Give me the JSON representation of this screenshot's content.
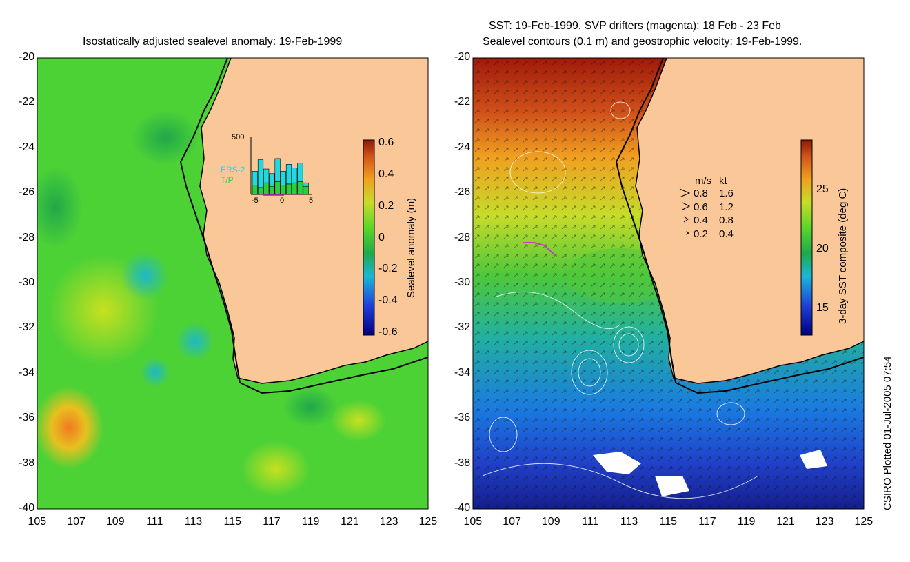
{
  "left_panel": {
    "title": "Isostatically adjusted sealevel anomaly: 19-Feb-1999",
    "lat_labels": [
      "-20",
      "-22",
      "-24",
      "-26",
      "-28",
      "-30",
      "-32",
      "-34",
      "-36",
      "-38",
      "-40"
    ],
    "lon_labels": [
      "105",
      "107",
      "109",
      "111",
      "113",
      "115",
      "117",
      "119",
      "121",
      "123",
      "125"
    ],
    "colorbar": {
      "label": "Sealevel anomaly (m)",
      "ticks": [
        "0.6",
        "0.4",
        "0.2",
        "0",
        "-0.2",
        "-0.4",
        "-0.6"
      ]
    },
    "inset": {
      "ymax_label": "500",
      "series_labels": [
        "ERS-2",
        "T/P"
      ],
      "x_ticks": [
        "-5",
        "0",
        "5"
      ],
      "ers2_color": "#22d8e0",
      "tp_color": "#2ecc40",
      "chart_data": {
        "type": "bar",
        "categories": [
          "-5",
          "-4",
          "-3",
          "-2",
          "-1",
          "0",
          "1",
          "2",
          "3",
          "4"
        ],
        "series": [
          {
            "name": "T/P",
            "values": [
              80,
              60,
              100,
              70,
              110,
              80,
              90,
              100,
              110,
              70
            ]
          },
          {
            "name": "ERS-2",
            "values": [
              120,
              240,
              120,
              110,
              200,
              120,
              170,
              130,
              160,
              30
            ]
          }
        ],
        "ylim": [
          0,
          500
        ]
      }
    }
  },
  "right_panel": {
    "title_line1": "SST: 19-Feb-1999. SVP drifters (magenta): 18 Feb - 23 Feb",
    "title_line2": "Sealevel contours (0.1 m) and geostrophic velocity: 19-Feb-1999.",
    "lat_labels": [
      "-20",
      "-22",
      "-24",
      "-26",
      "-28",
      "-30",
      "-32",
      "-34",
      "-36",
      "-38",
      "-40"
    ],
    "lon_labels": [
      "105",
      "107",
      "109",
      "111",
      "113",
      "115",
      "117",
      "119",
      "121",
      "123",
      "125"
    ],
    "legend": {
      "header": [
        "m/s",
        "kt"
      ],
      "rows": [
        {
          "ms": "0.8",
          "kt": "1.6"
        },
        {
          "ms": "0.6",
          "kt": "1.2"
        },
        {
          "ms": "0.4",
          "kt": "0.8"
        },
        {
          "ms": "0.2",
          "kt": "0.4"
        }
      ]
    },
    "colorbar": {
      "label": "3-day SST composite (deg C)",
      "ticks": [
        "25",
        "20",
        "15"
      ]
    }
  },
  "credit": "CSIRO Plotted 01-Jul-2005 07:54",
  "colors": {
    "land": "#fac898",
    "ocean_green": "#3dd63d",
    "sst_warm": "#a01a0a",
    "sst_cold": "#1a2ab8"
  }
}
